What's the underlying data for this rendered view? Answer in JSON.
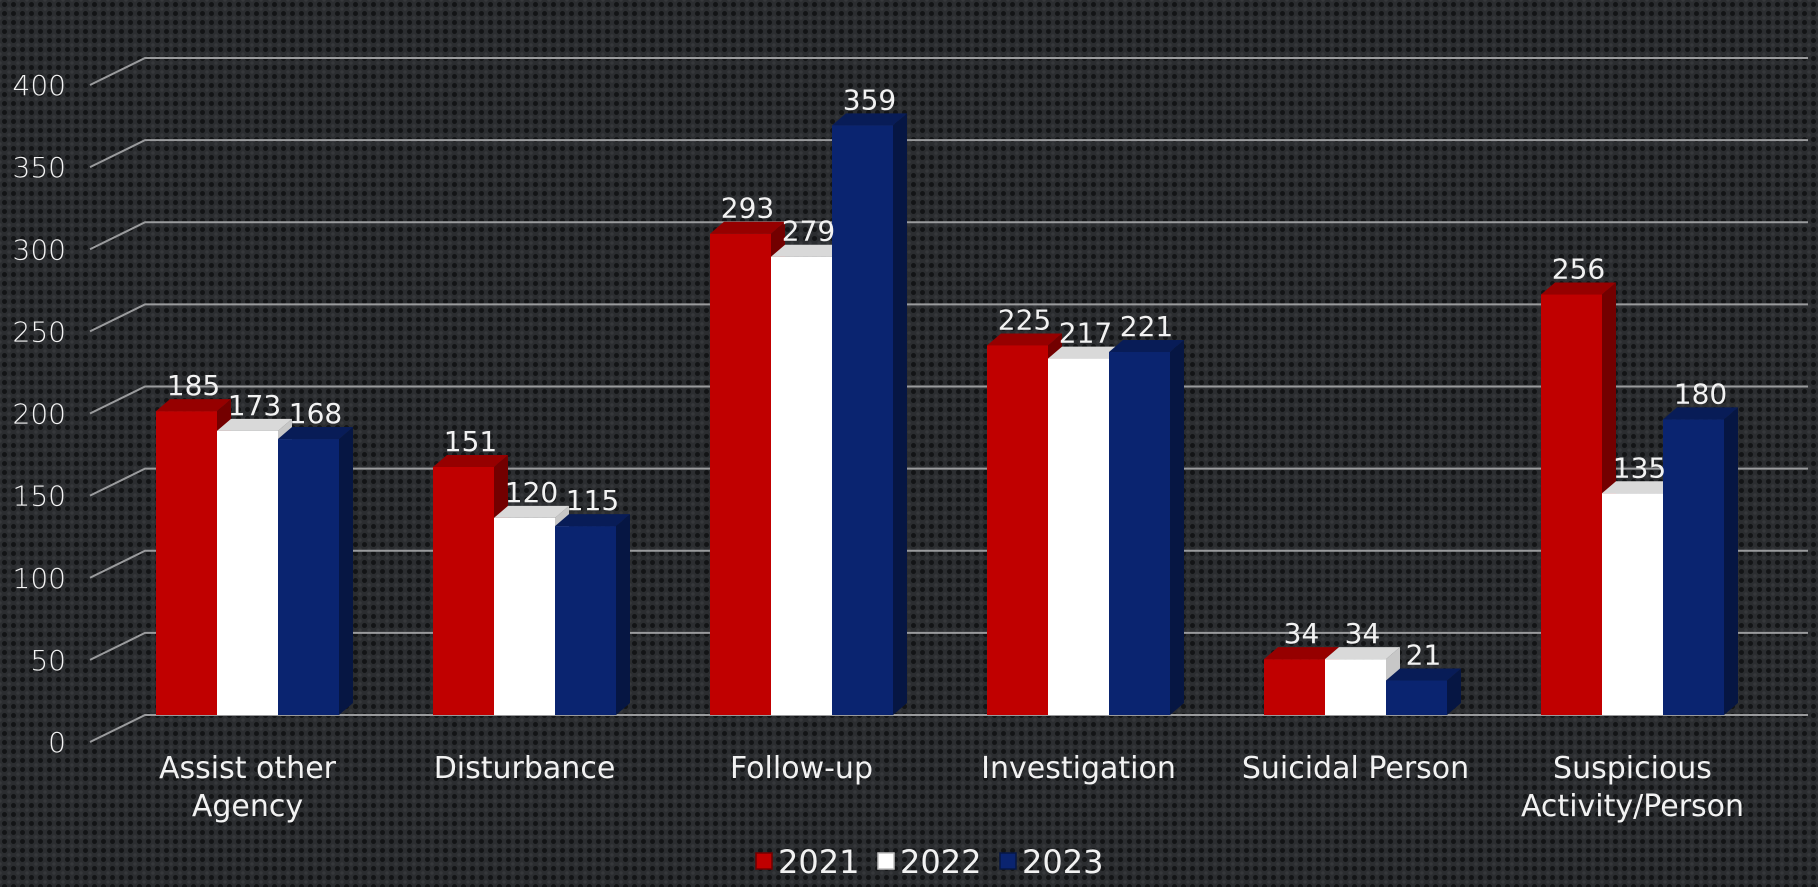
{
  "chart_data": {
    "type": "bar",
    "title": "",
    "xlabel": "",
    "ylabel": "",
    "ylim": [
      0,
      400
    ],
    "yticks": [
      0,
      50,
      100,
      150,
      200,
      250,
      300,
      350,
      400
    ],
    "grid": true,
    "legend_position": "bottom",
    "categories": [
      [
        "Assist other",
        "Agency"
      ],
      [
        "Disturbance"
      ],
      [
        "Follow-up"
      ],
      [
        "Investigation"
      ],
      [
        "Suicidal Person"
      ],
      [
        "Suspicious",
        "Activity/Person"
      ]
    ],
    "series": [
      {
        "name": "2021",
        "color": "#c00000",
        "values": [
          185,
          151,
          293,
          225,
          34,
          256
        ]
      },
      {
        "name": "2022",
        "color": "#ffffff",
        "values": [
          173,
          120,
          279,
          217,
          34,
          135
        ]
      },
      {
        "name": "2023",
        "color": "#0a2470",
        "values": [
          168,
          115,
          359,
          221,
          21,
          180
        ]
      }
    ]
  }
}
